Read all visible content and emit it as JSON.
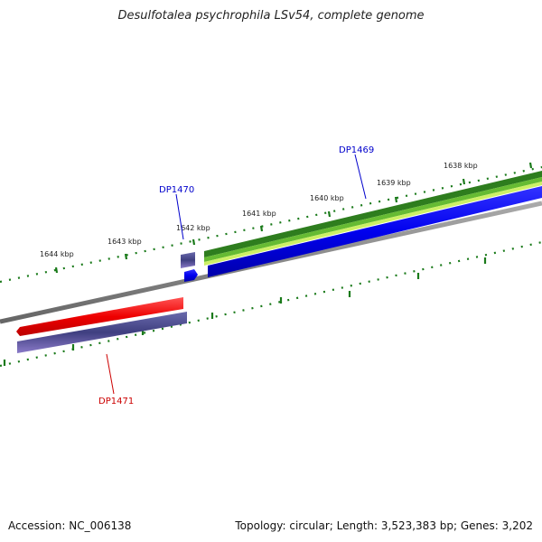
{
  "title": "Desulfotalea psychrophila LSv54, complete genome",
  "footer": {
    "accession": "Accession: NC_006138",
    "summary": "Topology: circular; Length: 3,523,383 bp; Genes: 3,202"
  },
  "scale": {
    "ticks": [
      {
        "label": "1644 kbp"
      },
      {
        "label": "1643 kbp"
      },
      {
        "label": "1642 kbp"
      },
      {
        "label": "1641 kbp"
      },
      {
        "label": "1640 kbp"
      },
      {
        "label": "1639 kbp"
      },
      {
        "label": "1638 kbp"
      }
    ]
  },
  "genes": [
    {
      "label": "DP1469",
      "color": "#0000cc"
    },
    {
      "label": "DP1470",
      "color": "#0000cc"
    },
    {
      "label": "DP1471",
      "color": "#cc0000"
    }
  ],
  "colors": {
    "backbone": "#888888",
    "tick": "#1a7a1a",
    "forward_cds": "#0000ee",
    "reverse_cds": "#ee0000",
    "feature_purple": "#4a4a8c",
    "feature_green_dark": "#2e7d1e",
    "feature_green_mid": "#66bb33",
    "feature_green_light": "#ccf066"
  }
}
